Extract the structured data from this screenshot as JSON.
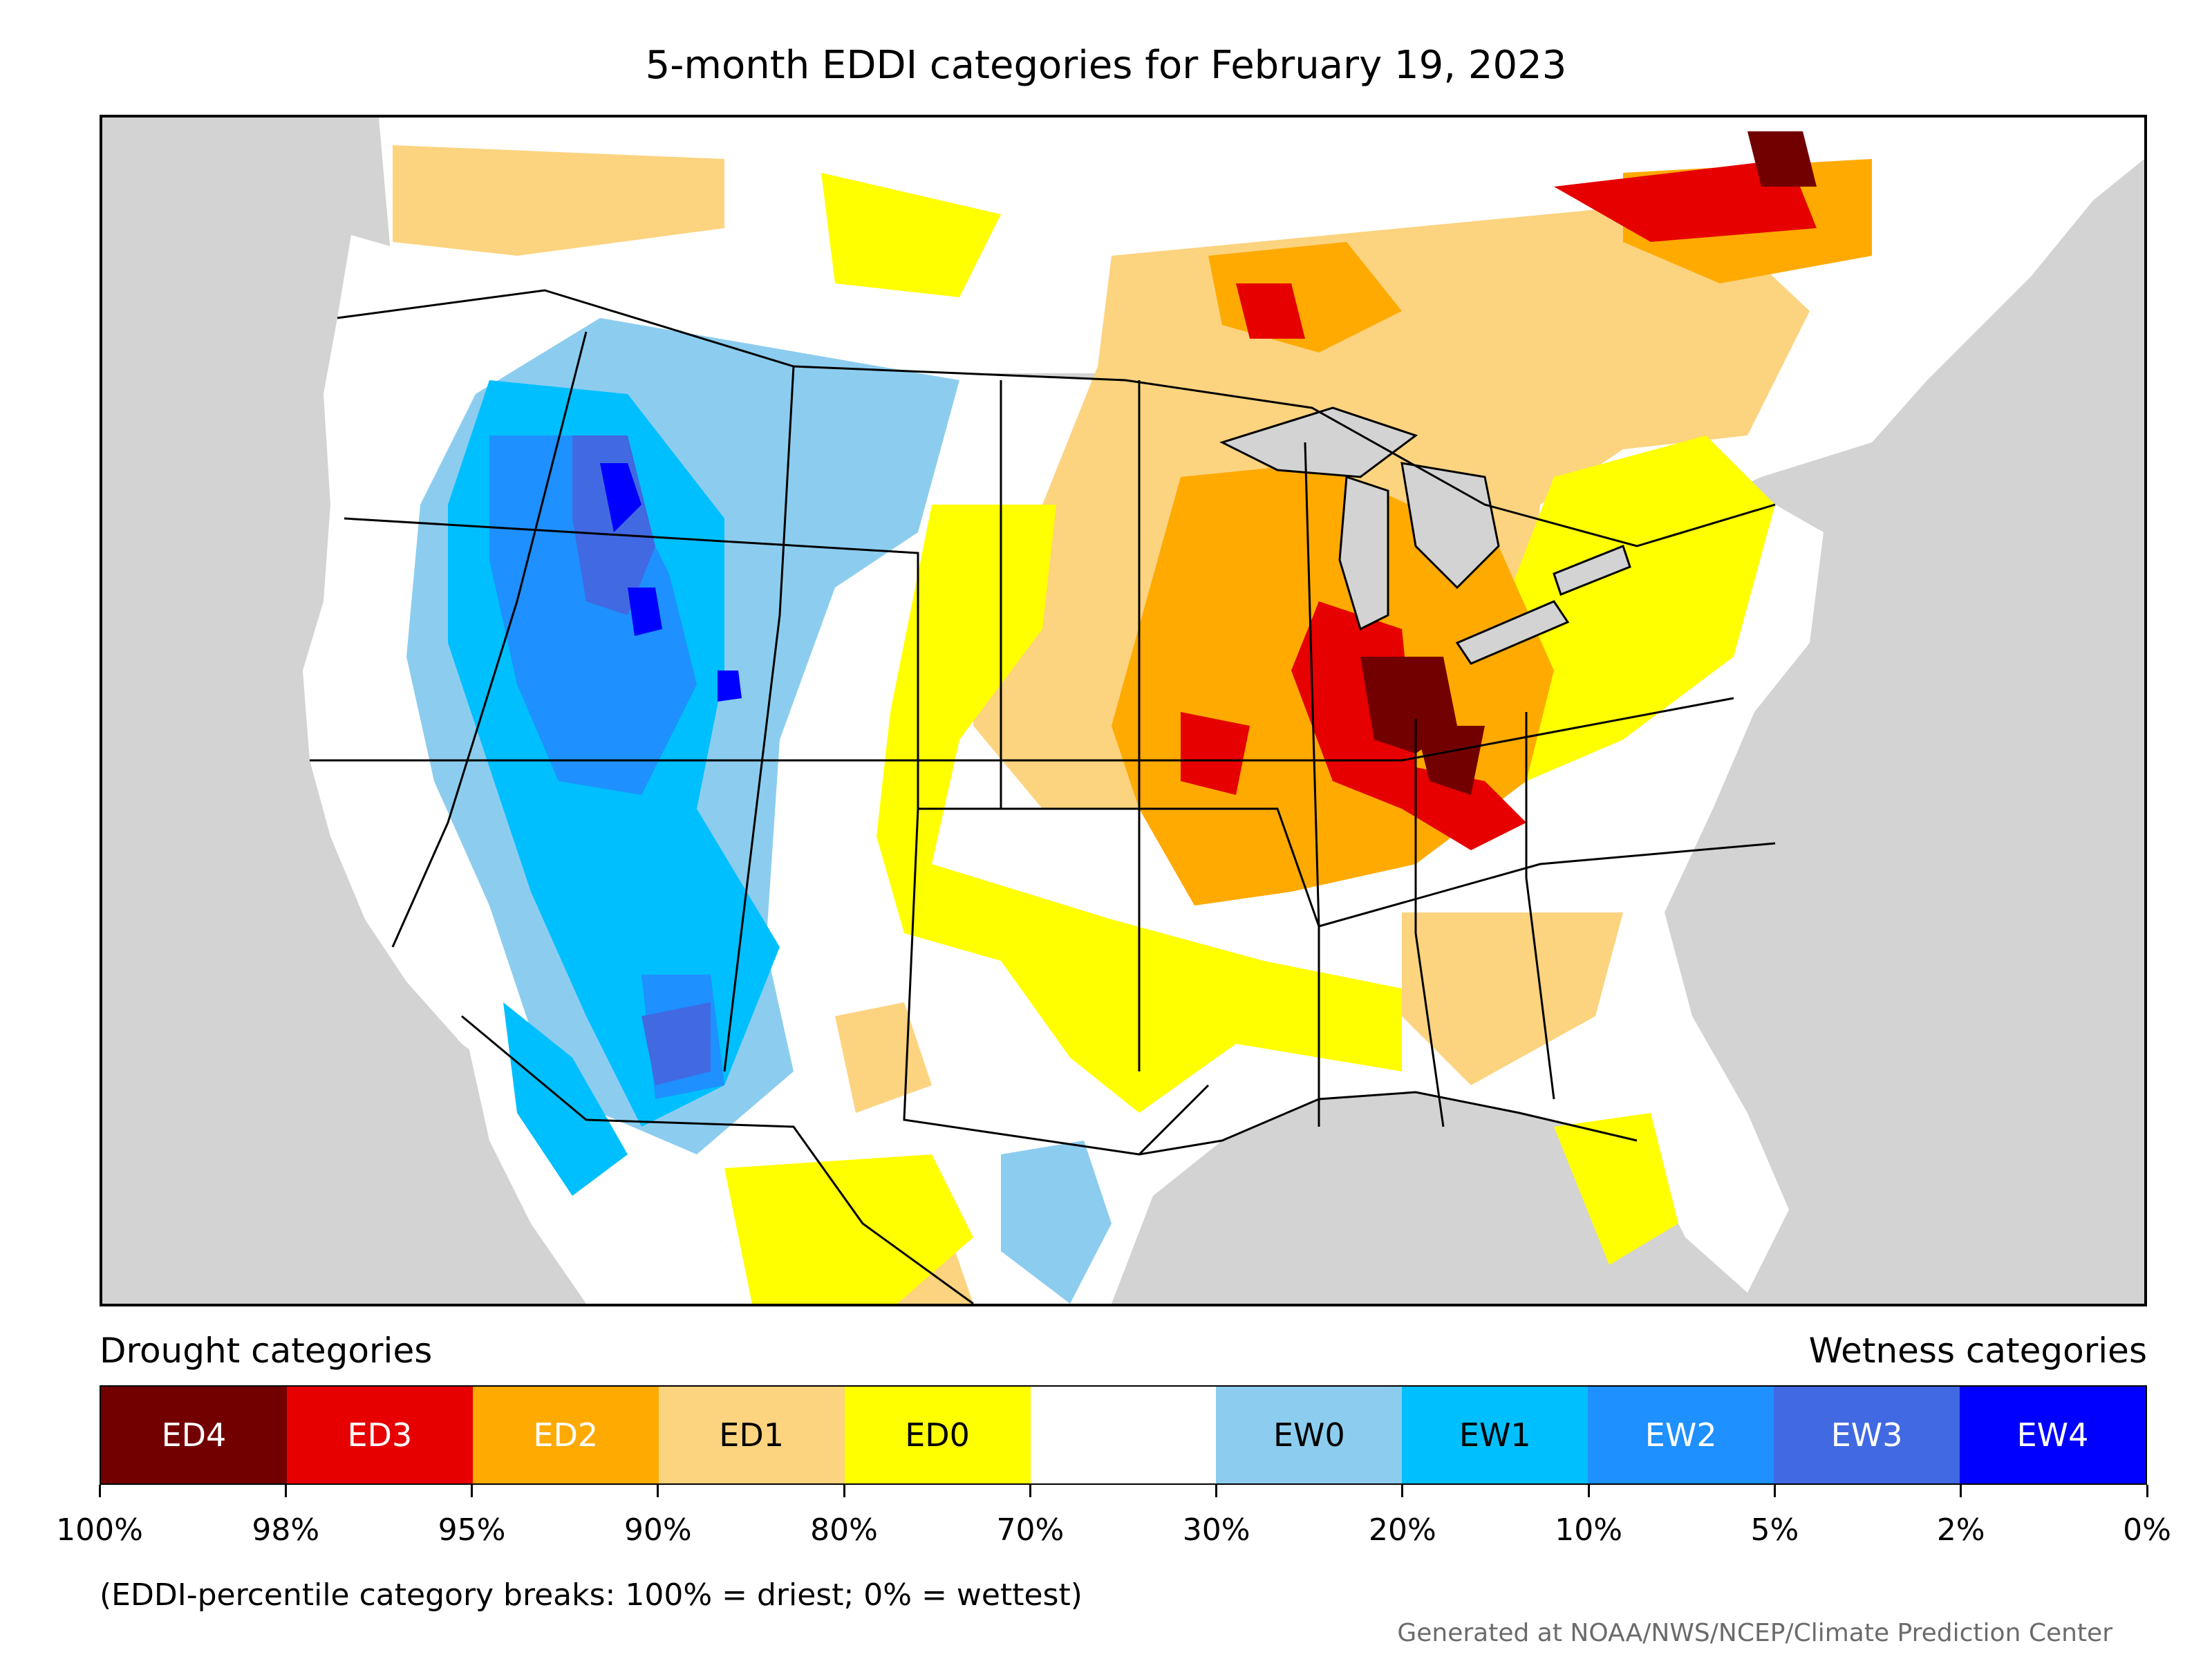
{
  "title": "5-month EDDI categories for February 19, 2023",
  "legend": {
    "left_label": "Drought categories",
    "right_label": "Wetness categories",
    "categories": [
      {
        "label": "ED4",
        "color": "#730000",
        "text_color": "#ffffff"
      },
      {
        "label": "ED3",
        "color": "#e60000",
        "text_color": "#ffffff"
      },
      {
        "label": "ED2",
        "color": "#ffaa00",
        "text_color": "#ffffff"
      },
      {
        "label": "ED1",
        "color": "#fcd37f",
        "text_color": "#000000"
      },
      {
        "label": "ED0",
        "color": "#ffff00",
        "text_color": "#000000"
      },
      {
        "label": "",
        "color": "#ffffff",
        "text_color": "#000000"
      },
      {
        "label": "EW0",
        "color": "#8ccdef",
        "text_color": "#000000"
      },
      {
        "label": "EW1",
        "color": "#00bfff",
        "text_color": "#000000"
      },
      {
        "label": "EW2",
        "color": "#1e90ff",
        "text_color": "#ffffff"
      },
      {
        "label": "EW3",
        "color": "#4169e1",
        "text_color": "#ffffff"
      },
      {
        "label": "EW4",
        "color": "#0000ff",
        "text_color": "#ffffff"
      }
    ],
    "tick_labels": [
      "100%",
      "98%",
      "95%",
      "90%",
      "80%",
      "70%",
      "30%",
      "20%",
      "10%",
      "5%",
      "2%",
      "0%"
    ]
  },
  "note": "(EDDI-percentile category breaks: 100% = driest; 0% = wettest)",
  "credit": "Generated at NOAA/NWS/NCEP/Climate Prediction Center",
  "colors": {
    "ocean": "#d3d3d3",
    "land": "#ffffff",
    "border": "#000000"
  }
}
